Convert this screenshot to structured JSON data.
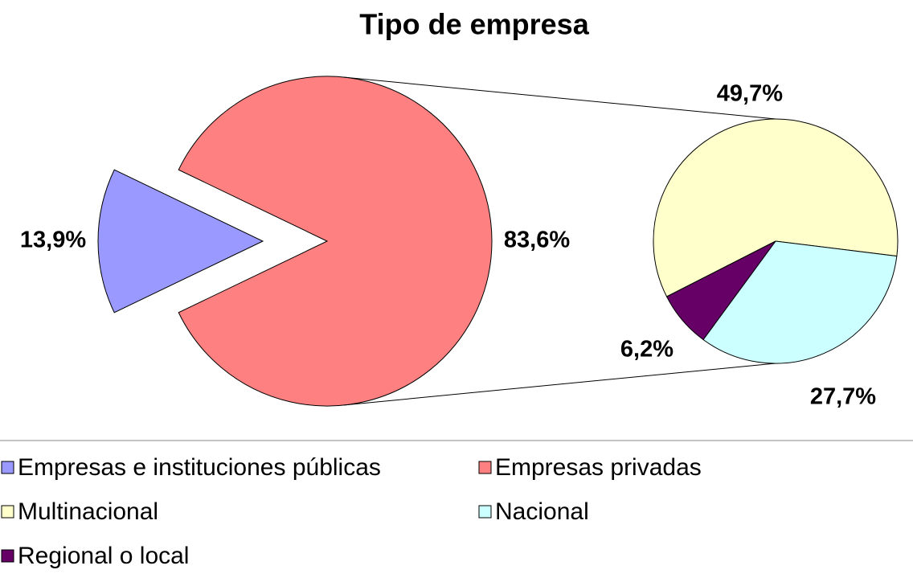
{
  "chart_data": {
    "type": "pie-of-pie",
    "title": "Tipo de empresa",
    "categories": [
      "Empresas e instituciones públicas",
      "Empresas privadas"
    ],
    "values": [
      13.9,
      83.6
    ],
    "value_labels": [
      "13,9%",
      "83,6%"
    ],
    "colors": [
      "#9999ff",
      "#ff8080"
    ],
    "secondary": {
      "categories": [
        "Multinacional",
        "Nacional",
        "Regional o local"
      ],
      "values": [
        49.7,
        27.7,
        6.2
      ],
      "value_labels": [
        "49,7%",
        "27,7%",
        "6,2%"
      ],
      "colors": [
        "#ffffcc",
        "#ccffff",
        "#660066"
      ]
    }
  }
}
